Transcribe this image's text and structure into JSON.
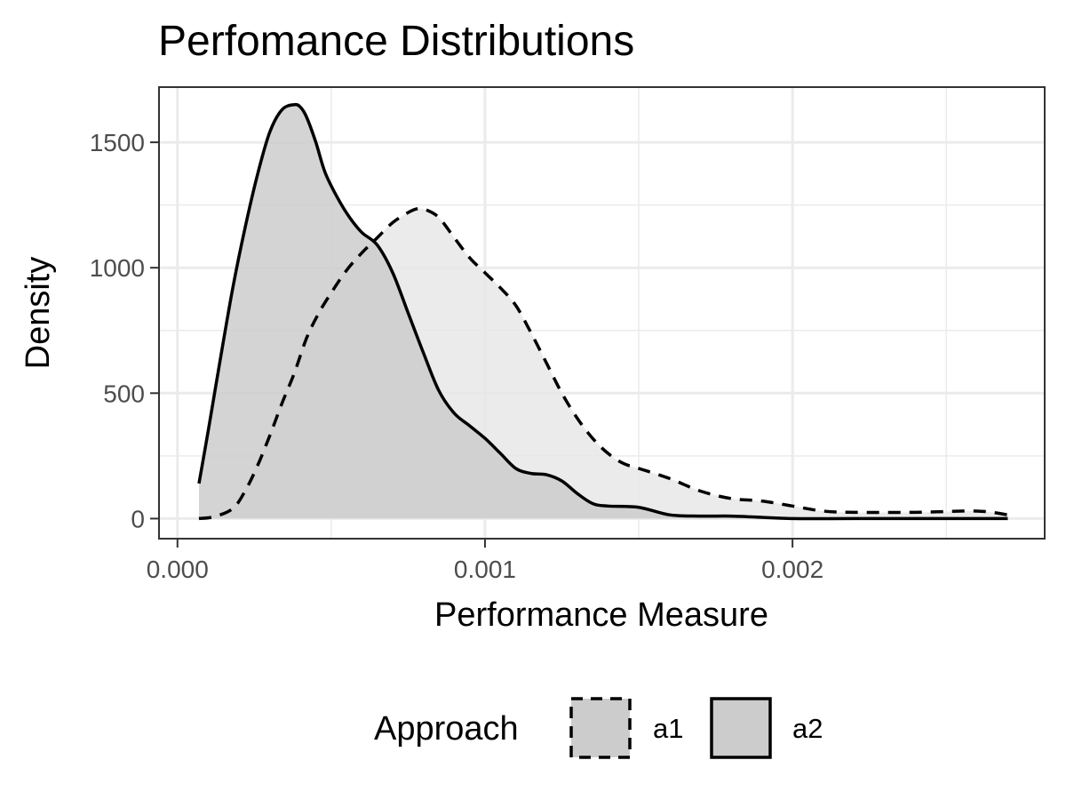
{
  "chart_data": {
    "type": "area",
    "title": "Perfomance Distributions",
    "xlabel": "Performance Measure",
    "ylabel": "Density",
    "xlim": [
      -6e-05,
      0.00282
    ],
    "ylim": [
      -80,
      1720
    ],
    "x_ticks": [
      {
        "value": 0.0,
        "label": "0.000"
      },
      {
        "value": 0.001,
        "label": "0.001"
      },
      {
        "value": 0.002,
        "label": "0.002"
      }
    ],
    "y_ticks": [
      {
        "value": 0,
        "label": "0"
      },
      {
        "value": 500,
        "label": "500"
      },
      {
        "value": 1000,
        "label": "1000"
      },
      {
        "value": 1500,
        "label": "1500"
      }
    ],
    "x_minor": [
      0.0005,
      0.0015,
      0.0025
    ],
    "y_minor": [
      250,
      750,
      1250
    ],
    "grid": true,
    "legend": {
      "title": "Approach",
      "position": "bottom"
    },
    "series": [
      {
        "name": "a1",
        "line_style": "dashed",
        "fill": "#e8e8e8",
        "x": [
          7e-05,
          0.00012,
          0.00018,
          0.00022,
          0.00026,
          0.0003,
          0.00034,
          0.00038,
          0.00042,
          0.00046,
          0.0005,
          0.00055,
          0.0006,
          0.00065,
          0.0007,
          0.00075,
          0.00078,
          0.00081,
          0.00085,
          0.0009,
          0.00095,
          0.001,
          0.00105,
          0.0011,
          0.00115,
          0.0012,
          0.00125,
          0.0013,
          0.00135,
          0.0014,
          0.00145,
          0.0015,
          0.0016,
          0.0017,
          0.0018,
          0.0019,
          0.002,
          0.0021,
          0.0022,
          0.0024,
          0.0026,
          0.0027
        ],
        "values": [
          0,
          8,
          40,
          110,
          210,
          330,
          460,
          580,
          720,
          820,
          900,
          990,
          1060,
          1120,
          1180,
          1220,
          1235,
          1230,
          1200,
          1120,
          1040,
          980,
          920,
          850,
          740,
          620,
          500,
          400,
          320,
          260,
          220,
          200,
          160,
          110,
          80,
          70,
          50,
          30,
          25,
          25,
          30,
          15
        ]
      },
      {
        "name": "a2",
        "line_style": "solid",
        "fill": "#cccccc",
        "x": [
          7e-05,
          0.0001,
          0.00014,
          0.00018,
          0.00022,
          0.00026,
          0.0003,
          0.00034,
          0.00038,
          0.0004,
          0.00042,
          0.00045,
          0.00048,
          0.00052,
          0.00056,
          0.0006,
          0.00065,
          0.0007,
          0.00075,
          0.0008,
          0.00085,
          0.0009,
          0.00095,
          0.001,
          0.00105,
          0.0011,
          0.00115,
          0.0012,
          0.00125,
          0.0013,
          0.00135,
          0.0014,
          0.0015,
          0.0016,
          0.0017,
          0.0018,
          0.0019,
          0.002,
          0.0022,
          0.0025,
          0.0027
        ],
        "values": [
          140,
          350,
          640,
          920,
          1160,
          1370,
          1540,
          1630,
          1650,
          1640,
          1600,
          1500,
          1380,
          1280,
          1200,
          1140,
          1090,
          980,
          820,
          660,
          510,
          420,
          370,
          320,
          260,
          200,
          180,
          175,
          150,
          100,
          60,
          50,
          45,
          15,
          10,
          10,
          5,
          0,
          0,
          0,
          0
        ]
      }
    ]
  }
}
